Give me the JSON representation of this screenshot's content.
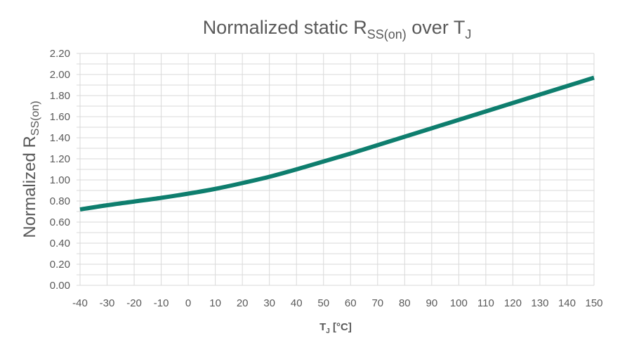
{
  "chart_data": {
    "type": "line",
    "title": {
      "main": "Normalized static R",
      "sub": "SS(on)",
      "mid": " over T",
      "sub2": "J"
    },
    "ylabel": {
      "main": "Normalized R",
      "sub": "SS(on)"
    },
    "xlabel": {
      "main": "T",
      "sub": "J",
      "rest": " [°C]"
    },
    "xlim": [
      -40,
      150
    ],
    "ylim": [
      0,
      2.2
    ],
    "x_ticks": [
      "-40",
      "-30",
      "-20",
      "-10",
      "0",
      "10",
      "20",
      "30",
      "40",
      "50",
      "60",
      "70",
      "80",
      "90",
      "100",
      "110",
      "120",
      "130",
      "140",
      "150"
    ],
    "y_ticks": [
      "0.00",
      "0.20",
      "0.40",
      "0.60",
      "0.80",
      "1.00",
      "1.20",
      "1.40",
      "1.60",
      "1.80",
      "2.00",
      "2.20"
    ],
    "grid": true,
    "colors": {
      "series": "#0e7e6e",
      "grid": "#d9d9d9",
      "text": "#595959"
    },
    "series": [
      {
        "x": [
          -40,
          -30,
          -20,
          -10,
          0,
          10,
          20,
          30,
          40,
          50,
          60,
          70,
          80,
          90,
          100,
          110,
          120,
          130,
          140,
          150
        ],
        "values": [
          0.72,
          0.76,
          0.795,
          0.83,
          0.87,
          0.915,
          0.97,
          1.03,
          1.1,
          1.175,
          1.25,
          1.33,
          1.41,
          1.49,
          1.57,
          1.65,
          1.73,
          1.81,
          1.89,
          1.97
        ]
      }
    ]
  }
}
